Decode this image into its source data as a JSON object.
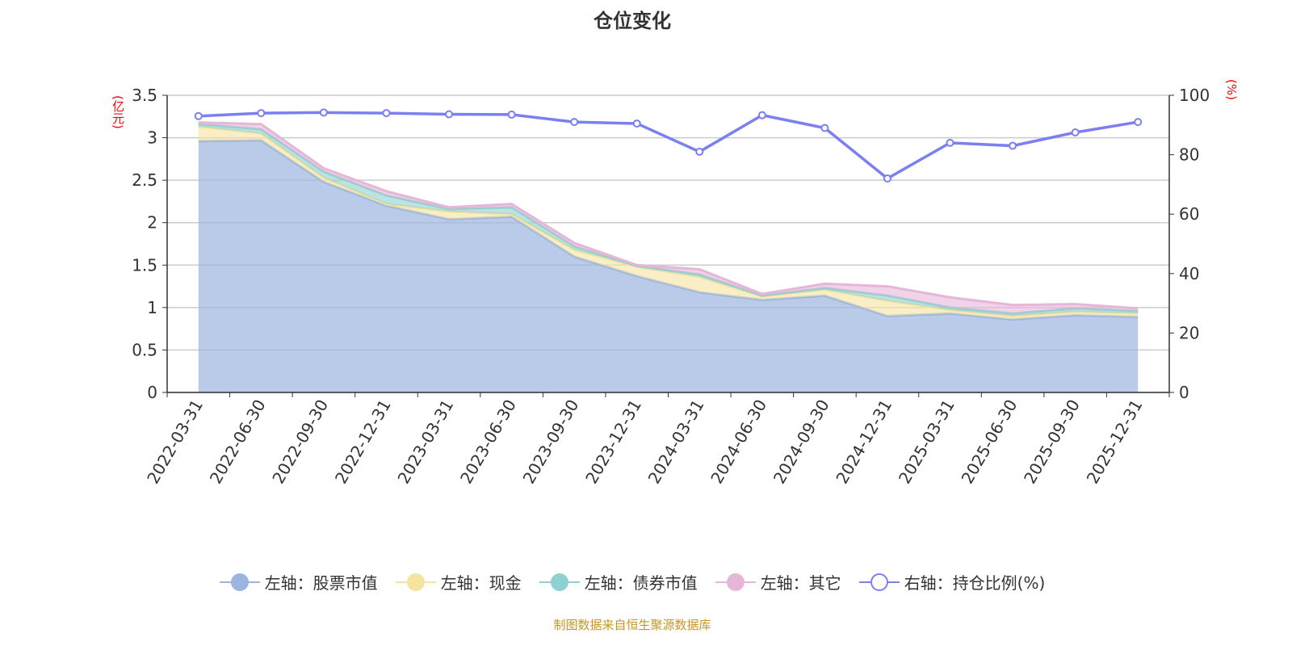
{
  "title": "仓位变化",
  "footer": "制图数据来自恒生聚源数据库",
  "chart_data": {
    "type": "area",
    "categories": [
      "2022-03-31",
      "2022-06-30",
      "2022-09-30",
      "2022-12-31",
      "2023-03-31",
      "2023-06-30",
      "2023-09-30",
      "2023-12-31",
      "2024-03-31",
      "2024-06-30",
      "2024-09-30",
      "2024-12-31",
      "2025-03-31",
      "2025-06-30",
      "2025-09-30",
      "2025-12-31"
    ],
    "left_axis": {
      "label": "(亿元)",
      "ylim": [
        0,
        3.5
      ],
      "ticks": [
        "0",
        "0.5",
        "1",
        "1.5",
        "2",
        "2.5",
        "3",
        "3.5"
      ]
    },
    "right_axis": {
      "label": "(%)",
      "ylim": [
        0,
        100
      ],
      "ticks": [
        "0",
        "20",
        "40",
        "60",
        "80",
        "100"
      ]
    },
    "grid": true,
    "legend_position": "bottom",
    "stacked": true,
    "series": [
      {
        "name": "左轴：股票市值",
        "axis": "left",
        "type": "area",
        "color": "#9bb5e0",
        "values": [
          2.96,
          2.97,
          2.48,
          2.2,
          2.04,
          2.07,
          1.6,
          1.37,
          1.18,
          1.09,
          1.14,
          0.9,
          0.93,
          0.86,
          0.91,
          0.89
        ]
      },
      {
        "name": "左轴：现金",
        "axis": "left",
        "type": "area",
        "color": "#f5e3a0",
        "values": [
          0.17,
          0.08,
          0.05,
          0.02,
          0.09,
          0.03,
          0.08,
          0.11,
          0.18,
          0.04,
          0.07,
          0.18,
          0.04,
          0.04,
          0.04,
          0.04
        ]
      },
      {
        "name": "左轴：债券市值",
        "axis": "left",
        "type": "area",
        "color": "#8fd1d0",
        "values": [
          0.03,
          0.05,
          0.07,
          0.1,
          0.03,
          0.08,
          0.04,
          0.01,
          0.03,
          0.01,
          0.02,
          0.06,
          0.03,
          0.03,
          0.04,
          0.03
        ]
      },
      {
        "name": "左轴：其它",
        "axis": "left",
        "type": "area",
        "color": "#e6b6d8",
        "values": [
          0.02,
          0.06,
          0.04,
          0.05,
          0.02,
          0.04,
          0.04,
          0.01,
          0.06,
          0.02,
          0.05,
          0.11,
          0.12,
          0.1,
          0.05,
          0.03
        ]
      },
      {
        "name": "右轴：持仓比例(%)",
        "axis": "right",
        "type": "line",
        "color": "#7b7ff0",
        "values": [
          93,
          94,
          94.2,
          94,
          93.6,
          93.5,
          91,
          90.5,
          81,
          93.3,
          89,
          72,
          84,
          83,
          87.5,
          91
        ]
      }
    ]
  }
}
